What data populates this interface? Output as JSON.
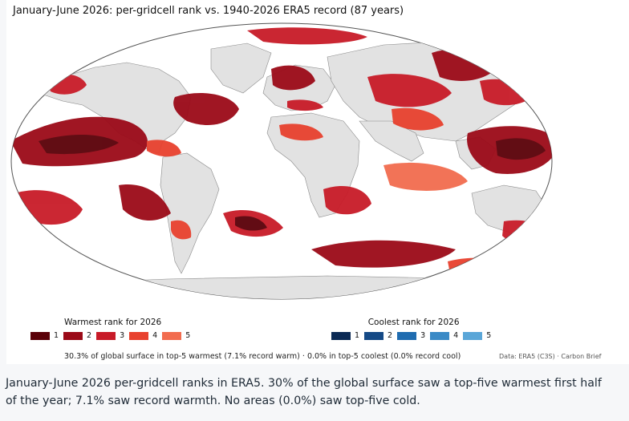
{
  "title": "January-June 2026: per-gridcell rank vs. 1940-2026 ERA5 record (87 years)",
  "colors": {
    "land": "#e2e2e2",
    "coast": "#8a8a8a",
    "warm": [
      "#5a0008",
      "#9b0a18",
      "#c81b28",
      "#e8412e",
      "#f26c4f"
    ],
    "cool": [
      "#0b2a55",
      "#154a86",
      "#1f6cb0",
      "#3a8ac6",
      "#5aa6d8"
    ]
  },
  "legend": {
    "warm_title": "Warmest rank for 2026",
    "cool_title": "Coolest rank for 2026",
    "warm_ranks": [
      "1",
      "2",
      "3",
      "4",
      "5"
    ],
    "cool_ranks": [
      "1",
      "2",
      "3",
      "4",
      "5"
    ]
  },
  "summary": "30.3% of global surface in top-5 warmest (7.1% record warm) · 0.0% in top-5 coolest (0.0% record cool)",
  "credit": "Data: ERA5 (C3S) · Carbon Brief",
  "caption": "January-June 2026 per-gridcell ranks in ERA5. 30% of the global surface saw a top-five warmest first half of the year; 7.1% saw record warmth. No areas (0.0%) saw top-five cold.",
  "stats": {
    "top5_warm_percent": 30.3,
    "record_warm_percent": 7.1,
    "top5_cool_percent": 0.0,
    "record_cool_percent": 0.0
  }
}
